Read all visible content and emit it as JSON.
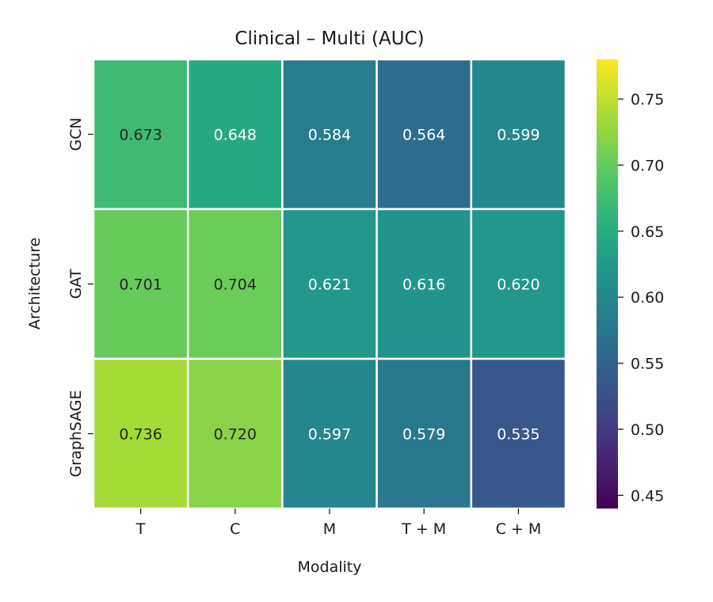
{
  "chart_data": {
    "type": "heatmap",
    "title": "Clinical – Multi (AUC)",
    "xlabel": "Modality",
    "ylabel": "Architecture",
    "x_categories": [
      "T",
      "C",
      "M",
      "T + M",
      "C + M"
    ],
    "y_categories": [
      "GCN",
      "GAT",
      "GraphSAGE"
    ],
    "values": [
      [
        0.673,
        0.648,
        0.584,
        0.564,
        0.599
      ],
      [
        0.701,
        0.704,
        0.621,
        0.616,
        0.62
      ],
      [
        0.736,
        0.72,
        0.597,
        0.579,
        0.535
      ]
    ],
    "value_labels": [
      [
        "0.673",
        "0.648",
        "0.584",
        "0.564",
        "0.599"
      ],
      [
        "0.701",
        "0.704",
        "0.621",
        "0.616",
        "0.620"
      ],
      [
        "0.736",
        "0.720",
        "0.597",
        "0.579",
        "0.535"
      ]
    ],
    "colormap": "viridis",
    "color_range": [
      0.44,
      0.78
    ],
    "colorbar_ticks": [
      "0.45",
      "0.50",
      "0.55",
      "0.60",
      "0.65",
      "0.70",
      "0.75"
    ],
    "colorbar_tick_values": [
      0.45,
      0.5,
      0.55,
      0.6,
      0.65,
      0.7,
      0.75
    ],
    "grid": "white cell borders",
    "legend": "colorbar right"
  }
}
